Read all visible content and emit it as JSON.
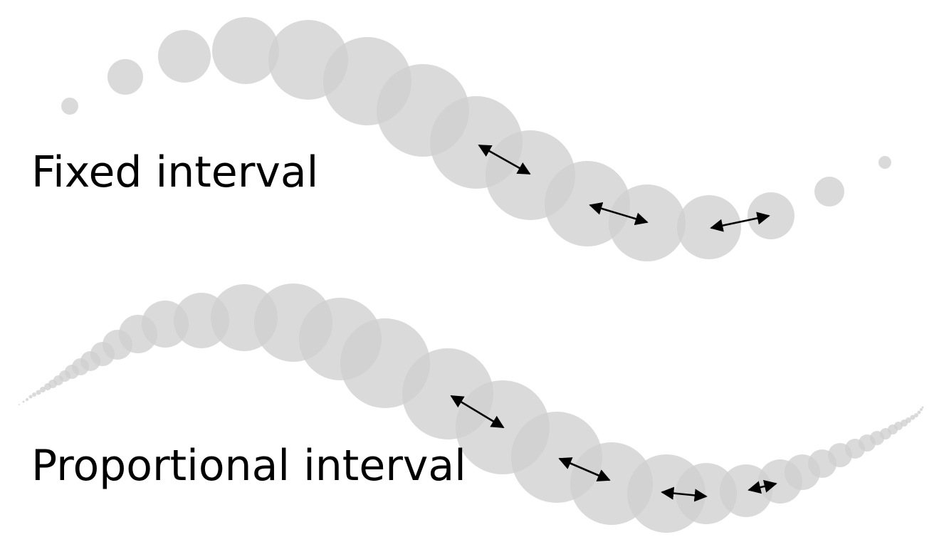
{
  "fixed": {
    "label": "Fixed interval",
    "dab_color": "#d0d0d0",
    "arrow_color": "#000000"
  },
  "proportional": {
    "label": "Proportional interval",
    "dab_color": "#d0d0d0",
    "arrow_color": "#000000"
  }
}
